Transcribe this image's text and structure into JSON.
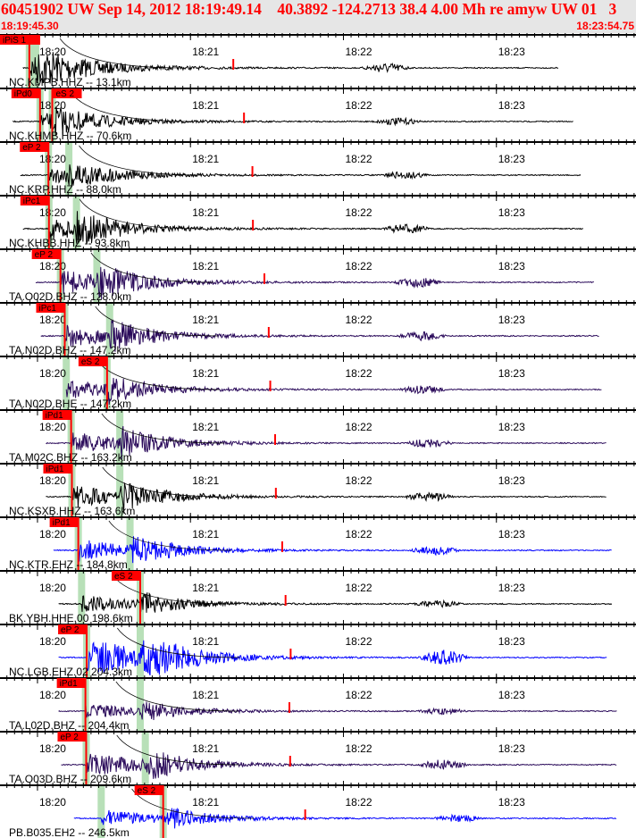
{
  "header": {
    "title": "60451902 UW Sep 14, 2012 18:19:49.14    40.3892 -124.2713 38.4 4.00 Mh re amyw UW 01   3",
    "start_time": "18:19:45.30",
    "end_time": "18:23:54.75"
  },
  "time_axis": {
    "start_seconds_after_1819": 45.3,
    "end_seconds_after_1819": 294.75,
    "minute_labels": [
      "18:20",
      "18:21",
      "18:22",
      "18:23"
    ]
  },
  "colors": {
    "pick": "#ff0000",
    "window": "#b8e0b8",
    "black": "#000000",
    "purple": "#2a0a5a",
    "blue": "#0000ff"
  },
  "traces": [
    {
      "label": "NC.KMPB.HHZ -- 13.1km",
      "color": "black",
      "picks": [
        {
          "text": "iPiS 1",
          "t": 11
        }
      ],
      "p": 11.5,
      "s": 14,
      "amp": 1.0,
      "start": 9,
      "end": 219
    },
    {
      "label": "NC.KHMB.HHZ -- 70.6km",
      "color": "black",
      "picks": [
        {
          "text": "iPd0",
          "t": 5
        },
        {
          "text": "eS 2",
          "t": 14
        }
      ],
      "p": 15.7,
      "s": 20.5,
      "amp": 0.7,
      "start": 5,
      "end": 225
    },
    {
      "label": "NC.KRP.HHZ -- 88.0km",
      "color": "black",
      "picks": [
        {
          "text": "eP 2",
          "t": 9
        }
      ],
      "p": 19,
      "s": 27,
      "amp": 0.7,
      "start": 8,
      "end": 228
    },
    {
      "label": "NC.KHBB.HHZ -- 93.8km",
      "color": "black",
      "picks": [
        {
          "text": "iPc1",
          "t": 10
        }
      ],
      "p": 19.2,
      "s": 30,
      "amp": 0.9,
      "start": 9,
      "end": 229
    },
    {
      "label": "TA.O02D.BHZ -- 128.0km",
      "color": "purple",
      "picks": [
        {
          "text": "eP 2",
          "t": 14
        }
      ],
      "p": 23.7,
      "s": 38,
      "amp": 1.0,
      "start": 14,
      "end": 233
    },
    {
      "label": "TA.N02D.BHZ -- 147.2km",
      "color": "purple",
      "picks": [
        {
          "text": "iPc1",
          "t": 16
        }
      ],
      "p": 25.4,
      "s": 43,
      "amp": 0.9,
      "start": 16,
      "end": 235
    },
    {
      "label": "TA.N02D.BHE -- 147.2km",
      "color": "purple",
      "picks": [
        {
          "text": "eS 2",
          "t": 32
        }
      ],
      "p": 26,
      "s": 42,
      "amp": 0.8,
      "start": 26,
      "end": 236
    },
    {
      "label": "TA.M02C.BHZ -- 163.2km",
      "color": "purple",
      "picks": [
        {
          "text": "iPd1",
          "t": 19
        }
      ],
      "p": 27.9,
      "s": 47,
      "amp": 0.9,
      "start": 18,
      "end": 238
    },
    {
      "label": "NC.KSXB.HHZ -- 163.6km",
      "color": "black",
      "picks": [
        {
          "text": "iPd1",
          "t": 19
        }
      ],
      "p": 28.2,
      "s": 47,
      "amp": 0.9,
      "start": 18,
      "end": 238
    },
    {
      "label": "NC.KTR.EHZ -- 184.8km",
      "color": "blue",
      "picks": [
        {
          "text": "iPd1",
          "t": 21
        }
      ],
      "p": 30.7,
      "s": 51,
      "amp": 0.9,
      "start": 21,
      "end": 240
    },
    {
      "label": "BK.YBH.HHE.00 198.6km",
      "color": "black",
      "picks": [
        {
          "text": "eS 2",
          "t": 46
        }
      ],
      "p": 32,
      "s": 55,
      "amp": 0.7,
      "start": 23,
      "end": 240
    },
    {
      "label": "NC.LGB.EHZ.02 204.3km",
      "color": "blue",
      "picks": [
        {
          "text": "eP 2",
          "t": 25
        }
      ],
      "p": 34,
      "s": 55,
      "amp": 1.6,
      "start": 23,
      "end": 238
    },
    {
      "label": "TA.L02D.BHZ -- 204.4km",
      "color": "purple",
      "picks": [
        {
          "text": "iPd1",
          "t": 24
        }
      ],
      "p": 33.5,
      "s": 55,
      "amp": 0.6,
      "start": 23,
      "end": 242
    },
    {
      "label": "TA.O03D.BHZ -- 209.6km",
      "color": "purple",
      "picks": [
        {
          "text": "eP 2",
          "t": 25
        }
      ],
      "p": 33.8,
      "s": 57,
      "amp": 1.0,
      "start": 24,
      "end": 242
    },
    {
      "label": "PB.B035.EH2 -- 246.5km",
      "color": "blue",
      "picks": [
        {
          "text": "eS 2",
          "t": 55
        }
      ],
      "p": 39.7,
      "s": 64,
      "amp": 0.7,
      "start": 29,
      "end": 242
    }
  ]
}
